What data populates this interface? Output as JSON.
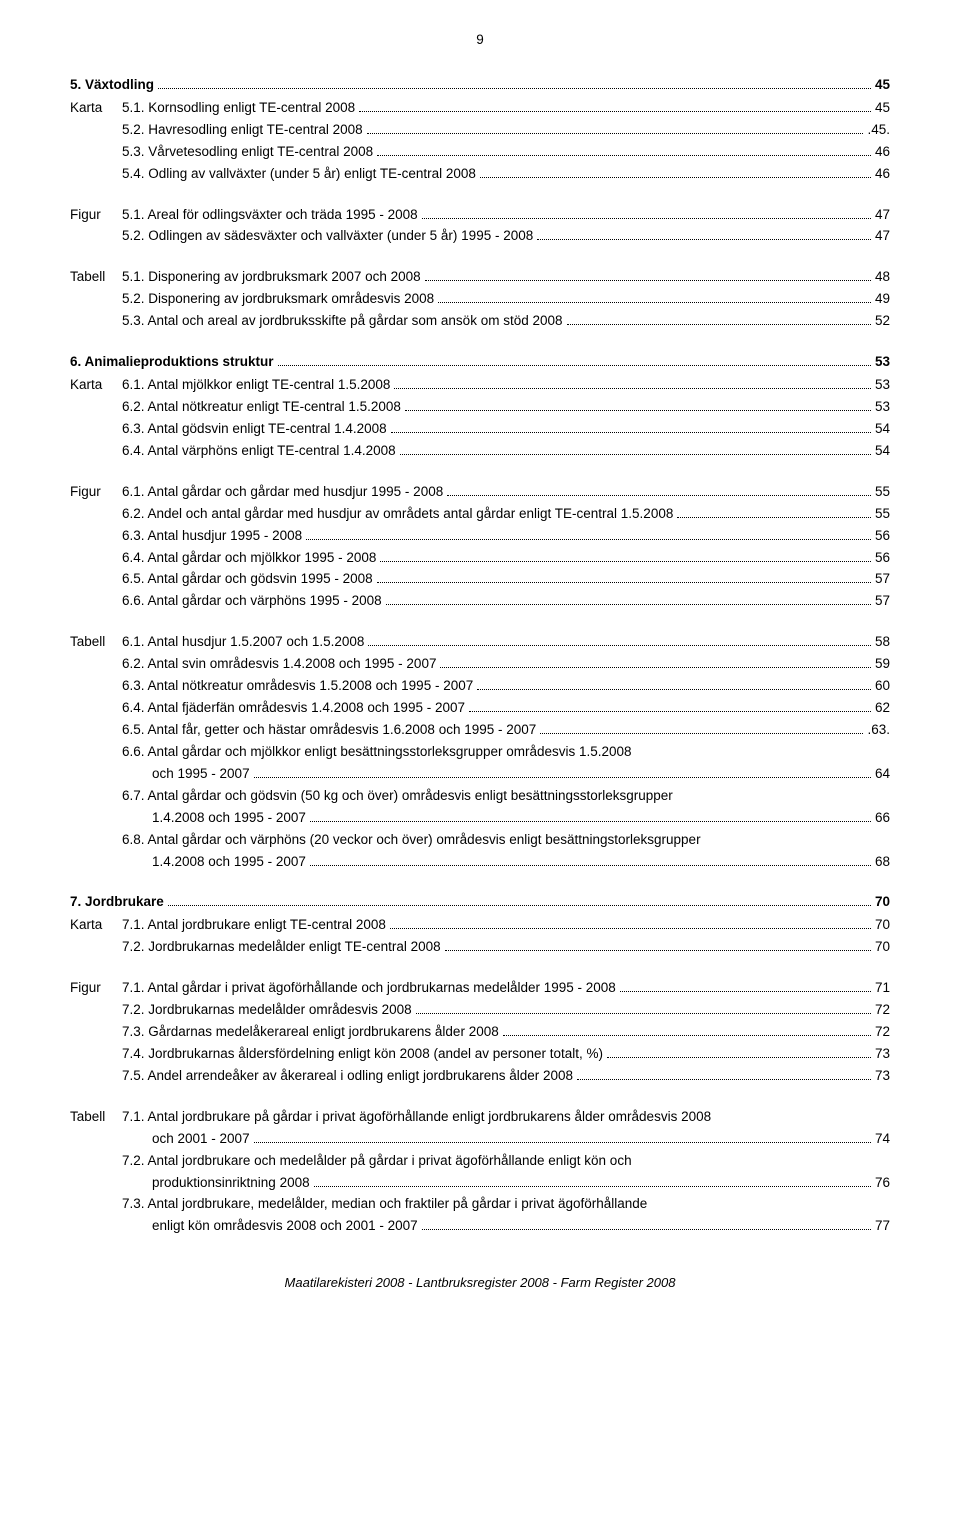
{
  "page_number": "9",
  "colors": {
    "text": "#000000",
    "bg": "#ffffff"
  },
  "typography": {
    "family": "Arial, Helvetica, sans-serif",
    "base_size_pt": 10,
    "bold_weight": 700
  },
  "sections": [
    {
      "heading": {
        "label": "5. Växtodling",
        "page": "45"
      },
      "groups": [
        {
          "label": "Karta",
          "entries": [
            {
              "text": "5.1. Kornsodling enligt TE-central 2008",
              "page": "45"
            },
            {
              "text": "5.2. Havresodling enligt TE-central 2008",
              "page": ".45."
            },
            {
              "text": "5.3. Vårvetesodling enligt TE-central 2008",
              "page": "46"
            },
            {
              "text": "5.4. Odling av vallväxter (under 5 år) enligt TE-central 2008",
              "page": "46"
            }
          ]
        },
        {
          "label": "Figur",
          "entries": [
            {
              "text": "5.1. Areal för odlingsväxter och träda 1995 - 2008",
              "page": "47"
            },
            {
              "text": "5.2. Odlingen av sädesväxter och vallväxter (under 5 år) 1995 - 2008",
              "page": "47"
            }
          ]
        },
        {
          "label": "Tabell",
          "entries": [
            {
              "text": "5.1. Disponering av jordbruksmark 2007 och 2008",
              "page": "48"
            },
            {
              "text": "5.2. Disponering av jordbruksmark områdesvis 2008",
              "page": "49"
            },
            {
              "text": "5.3. Antal och areal av jordbruksskifte på gårdar som ansök om stöd 2008",
              "page": "52"
            }
          ]
        }
      ]
    },
    {
      "heading": {
        "label": "6. Animalieproduktions struktur",
        "page": "53"
      },
      "groups": [
        {
          "label": "Karta",
          "entries": [
            {
              "text": "6.1. Antal mjölkkor enligt TE-central 1.5.2008",
              "page": "53"
            },
            {
              "text": "6.2. Antal nötkreatur enligt TE-central 1.5.2008",
              "page": "53"
            },
            {
              "text": "6.3. Antal gödsvin enligt TE-central 1.4.2008",
              "page": "54"
            },
            {
              "text": "6.4. Antal värphöns enligt TE-central 1.4.2008",
              "page": "54"
            }
          ]
        },
        {
          "label": "Figur",
          "entries": [
            {
              "text": "6.1. Antal gårdar och gårdar med husdjur 1995 - 2008",
              "page": "55"
            },
            {
              "text": "6.2. Andel och antal gårdar med husdjur av områdets antal gårdar enligt TE-central 1.5.2008",
              "page": "55"
            },
            {
              "text": "6.3. Antal husdjur 1995 - 2008",
              "page": "56"
            },
            {
              "text": "6.4. Antal gårdar och mjölkkor 1995 - 2008",
              "page": "56"
            },
            {
              "text": "6.5. Antal gårdar och gödsvin 1995 - 2008",
              "page": "57"
            },
            {
              "text": "6.6. Antal gårdar och värphöns 1995 - 2008",
              "page": "57"
            }
          ]
        },
        {
          "label": "Tabell",
          "entries": [
            {
              "text": "6.1. Antal husdjur 1.5.2007 och 1.5.2008",
              "page": "58"
            },
            {
              "text": "6.2. Antal svin områdesvis 1.4.2008 och 1995 - 2007",
              "page": "59"
            },
            {
              "text": "6.3. Antal nötkreatur områdesvis 1.5.2008 och 1995 - 2007",
              "page": "60"
            },
            {
              "text": "6.4. Antal fjäderfän områdesvis 1.4.2008 och 1995 - 2007",
              "page": "62"
            },
            {
              "text": "6.5. Antal får, getter och hästar områdesvis 1.6.2008 och 1995 - 2007",
              "page": ".63."
            },
            {
              "text": "6.6. Antal gårdar och mjölkkor enligt besättningsstorleksgrupper områdesvis 1.5.2008",
              "cont": "och 1995 - 2007",
              "page": "64"
            },
            {
              "text": "6.7. Antal gårdar och gödsvin (50 kg och över) områdesvis enligt besättningsstorleksgrupper",
              "cont": "1.4.2008 och 1995 - 2007",
              "page": "66"
            },
            {
              "text": "6.8. Antal gårdar och värphöns (20 veckor och över) områdesvis enligt besättningstorleksgrupper",
              "cont": "1.4.2008 och 1995 - 2007",
              "page": "68"
            }
          ]
        }
      ]
    },
    {
      "heading": {
        "label": "7. Jordbrukare",
        "page": "70"
      },
      "groups": [
        {
          "label": "Karta",
          "entries": [
            {
              "text": "7.1. Antal jordbrukare enligt TE-central 2008",
              "page": "70"
            },
            {
              "text": "7.2. Jordbrukarnas medelålder enligt TE-central 2008",
              "page": "70"
            }
          ]
        },
        {
          "label": "Figur",
          "entries": [
            {
              "text": "7.1. Antal gårdar i privat ägoförhållande och jordbrukarnas medelålder 1995 - 2008",
              "page": "71"
            },
            {
              "text": "7.2. Jordbrukarnas medelålder områdesvis 2008",
              "page": "72"
            },
            {
              "text": "7.3. Gårdarnas medelåkerareal enligt jordbrukarens ålder 2008",
              "page": "72"
            },
            {
              "text": "7.4. Jordbrukarnas åldersfördelning enligt kön 2008 (andel av personer totalt, %)",
              "page": "73"
            },
            {
              "text": "7.5. Andel arrendeåker av åkerareal i odling enligt jordbrukarens ålder 2008",
              "page": "73"
            }
          ]
        },
        {
          "label": "Tabell",
          "entries": [
            {
              "text": "7.1. Antal jordbrukare på gårdar i privat ägoförhållande enligt jordbrukarens ålder områdesvis 2008",
              "cont": "och 2001 - 2007",
              "page": "74"
            },
            {
              "text": "7.2. Antal jordbrukare och medelålder på gårdar i privat ägoförhållande enligt kön och",
              "cont": "produktionsinriktning 2008",
              "page": "76"
            },
            {
              "text": "7.3. Antal jordbrukare, medelålder, median och fraktiler på gårdar i privat ägoförhållande",
              "cont": "enligt kön områdesvis 2008 och 2001 - 2007",
              "page": "77"
            }
          ]
        }
      ]
    }
  ],
  "footer": "Maatilarekisteri 2008 - Lantbruksregister 2008 - Farm Register 2008"
}
